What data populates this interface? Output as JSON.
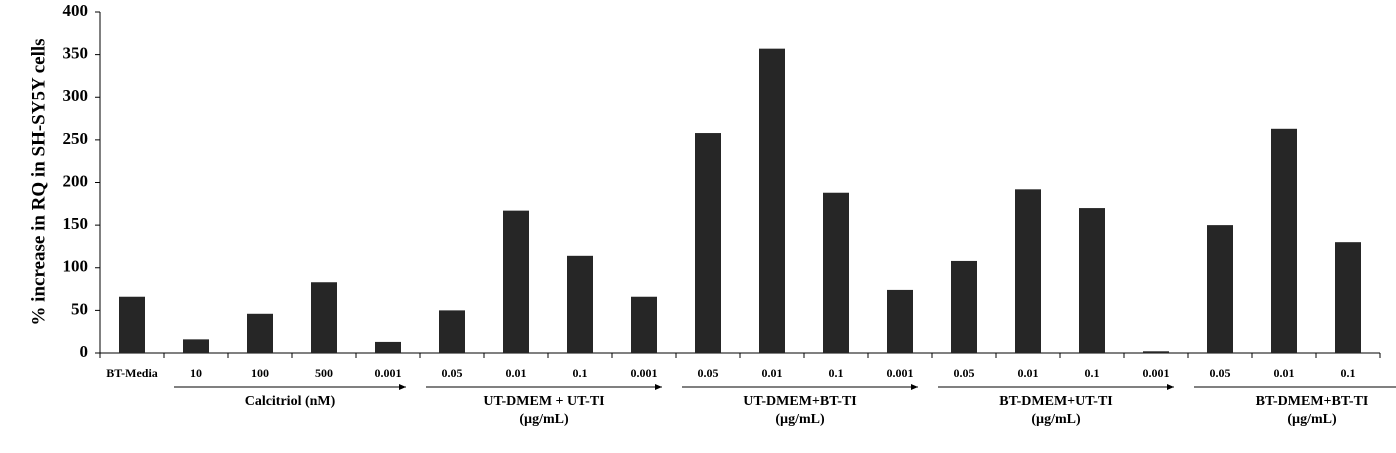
{
  "chart_data": {
    "type": "bar",
    "y_label": "% increase in RQ in SH-SY5Y cells",
    "categories": [
      "BT-Media",
      "10",
      "100",
      "500",
      "0.001",
      "0.05",
      "0.01",
      "0.1",
      "0.001",
      "0.05",
      "0.01",
      "0.1",
      "0.001",
      "0.05",
      "0.01",
      "0.1",
      "0.001",
      "0.05",
      "0.01",
      "0.1"
    ],
    "values": [
      66,
      16,
      46,
      83,
      13,
      50,
      167,
      114,
      66,
      258,
      357,
      188,
      74,
      108,
      192,
      170,
      2,
      150,
      263,
      130
    ],
    "color": "#262626",
    "groups": [
      [
        "Calcitriol (nM)"
      ],
      [
        "UT-DMEM + UT-TI",
        "(µg/mL)"
      ],
      [
        "UT-DMEM+BT-TI",
        "(µg/mL)"
      ],
      [
        "BT-DMEM+UT-TI",
        "(µg/mL)"
      ],
      [
        "BT-DMEM+BT-TI",
        "(µg/mL)"
      ]
    ],
    "ylim": [
      0,
      400
    ],
    "yticks": [
      0,
      50,
      100,
      150,
      200,
      250,
      300,
      350,
      400
    ]
  }
}
